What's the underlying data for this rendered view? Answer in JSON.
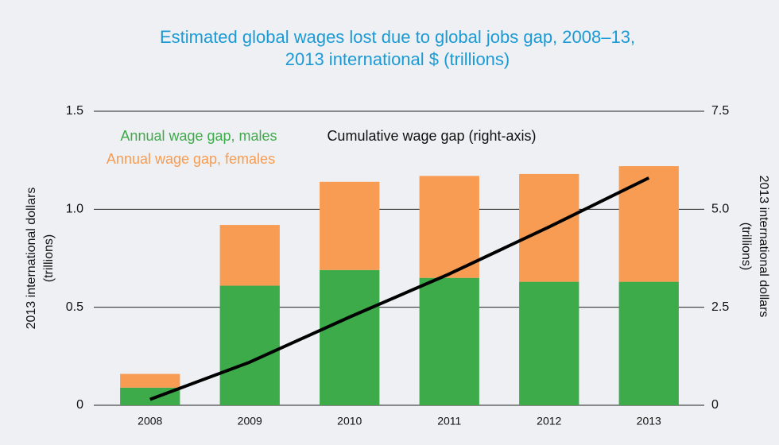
{
  "chart_data": {
    "type": "bar",
    "title": [
      "Estimated global wages lost due to global jobs gap, 2008–13,",
      "2013 international $ (trillions)"
    ],
    "ylabel": [
      "2013 international dollars",
      "(trillions)"
    ],
    "y2label": [
      "2013 international dollars",
      "(trillions)"
    ],
    "categories": [
      "2008",
      "2009",
      "2010",
      "2011",
      "2012",
      "2013"
    ],
    "series": [
      {
        "name": "Annual wage gap, males",
        "color": "#3dab4a",
        "values": [
          0.09,
          0.61,
          0.69,
          0.65,
          0.63,
          0.63
        ]
      },
      {
        "name": "Annual wage gap, females",
        "color": "#f79c52",
        "values": [
          0.07,
          0.31,
          0.45,
          0.52,
          0.55,
          0.59
        ]
      },
      {
        "name": "Cumulative wage gap (right-axis)",
        "color": "#000000",
        "type": "line",
        "axis": "y2",
        "values": [
          0.15,
          1.1,
          2.25,
          3.35,
          4.55,
          5.8
        ]
      }
    ],
    "stacked": true,
    "ylim": [
      0,
      1.5
    ],
    "yticks": [
      0,
      0.5,
      {
        "value": 1,
        "label": "1.0"
      },
      1.5
    ],
    "y2lim": [
      0,
      7.5
    ],
    "y2ticks": [
      0,
      2.5,
      {
        "value": 5,
        "label": "5.0"
      },
      7.5
    ],
    "grid": true
  }
}
